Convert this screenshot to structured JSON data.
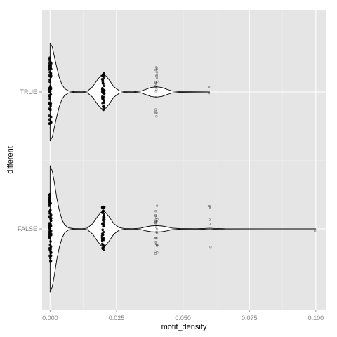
{
  "chart_data": {
    "type": "violin",
    "orientation": "horizontal",
    "xlabel": "motif_density",
    "ylabel": "different",
    "xlim": [
      -0.003,
      0.104
    ],
    "x_ticks": [
      0,
      0.025,
      0.05,
      0.075,
      0.1
    ],
    "x_tick_labels": [
      "0.000",
      "0.025",
      "0.050",
      "0.075",
      "0.100"
    ],
    "categories": [
      "FALSE",
      "TRUE"
    ],
    "grid": true,
    "colors": {
      "panel": "#e5e5e5",
      "grid_major": "#ffffff",
      "grid_minor": "#f0f0f0",
      "violin_fill": "#ffffff",
      "violin_line": "#000000",
      "points": "#000000"
    },
    "series": [
      {
        "category": "TRUE",
        "density": [
          [
            0,
            0.76
          ],
          [
            0.0008,
            0.7
          ],
          [
            0.0016,
            0.55
          ],
          [
            0.0025,
            0.38
          ],
          [
            0.0035,
            0.22
          ],
          [
            0.0045,
            0.11
          ],
          [
            0.0055,
            0.05
          ],
          [
            0.007,
            0.015
          ],
          [
            0.009,
            0.004
          ],
          [
            0.012,
            0.002
          ],
          [
            0.014,
            0.012
          ],
          [
            0.016,
            0.08
          ],
          [
            0.018,
            0.2
          ],
          [
            0.019,
            0.25
          ],
          [
            0.02,
            0.27
          ],
          [
            0.021,
            0.25
          ],
          [
            0.022,
            0.2
          ],
          [
            0.024,
            0.08
          ],
          [
            0.026,
            0.02
          ],
          [
            0.028,
            0.005
          ],
          [
            0.031,
            0.002
          ],
          [
            0.034,
            0.012
          ],
          [
            0.036,
            0.04
          ],
          [
            0.038,
            0.07
          ],
          [
            0.04,
            0.08
          ],
          [
            0.042,
            0.07
          ],
          [
            0.044,
            0.04
          ],
          [
            0.046,
            0.015
          ],
          [
            0.049,
            0.005
          ],
          [
            0.052,
            0.003
          ],
          [
            0.056,
            0.002
          ],
          [
            0.06,
            0.001
          ]
        ],
        "points": [
          {
            "x": 0,
            "count": 60,
            "jitter": 0.55
          },
          {
            "x": 0.02,
            "count": 40,
            "jitter": 0.3
          },
          {
            "x": 0.04,
            "count": 22,
            "jitter": 0.42
          },
          {
            "x": 0.06,
            "count": 2,
            "jitter": 0.26
          }
        ]
      },
      {
        "category": "FALSE",
        "density": [
          [
            0,
            0.98
          ],
          [
            0.0008,
            0.9
          ],
          [
            0.0016,
            0.72
          ],
          [
            0.0025,
            0.48
          ],
          [
            0.0035,
            0.28
          ],
          [
            0.0045,
            0.14
          ],
          [
            0.0055,
            0.06
          ],
          [
            0.007,
            0.015
          ],
          [
            0.009,
            0.004
          ],
          [
            0.012,
            0.002
          ],
          [
            0.014,
            0.012
          ],
          [
            0.016,
            0.08
          ],
          [
            0.018,
            0.2
          ],
          [
            0.019,
            0.25
          ],
          [
            0.02,
            0.28
          ],
          [
            0.021,
            0.25
          ],
          [
            0.022,
            0.2
          ],
          [
            0.024,
            0.08
          ],
          [
            0.026,
            0.02
          ],
          [
            0.028,
            0.005
          ],
          [
            0.031,
            0.002
          ],
          [
            0.034,
            0.01
          ],
          [
            0.036,
            0.03
          ],
          [
            0.038,
            0.045
          ],
          [
            0.04,
            0.05
          ],
          [
            0.042,
            0.045
          ],
          [
            0.044,
            0.03
          ],
          [
            0.046,
            0.012
          ],
          [
            0.049,
            0.004
          ],
          [
            0.055,
            0.002
          ],
          [
            0.058,
            0.006
          ],
          [
            0.06,
            0.01
          ],
          [
            0.062,
            0.006
          ],
          [
            0.066,
            0.002
          ],
          [
            0.08,
            0.001
          ],
          [
            0.1,
            0.001
          ]
        ],
        "points": [
          {
            "x": 0,
            "count": 75,
            "jitter": 0.55
          },
          {
            "x": 0.02,
            "count": 45,
            "jitter": 0.35
          },
          {
            "x": 0.04,
            "count": 28,
            "jitter": 0.4
          },
          {
            "x": 0.06,
            "count": 6,
            "jitter": 0.42
          },
          {
            "x": 0.1,
            "count": 1,
            "jitter": 0.12
          }
        ]
      }
    ]
  }
}
